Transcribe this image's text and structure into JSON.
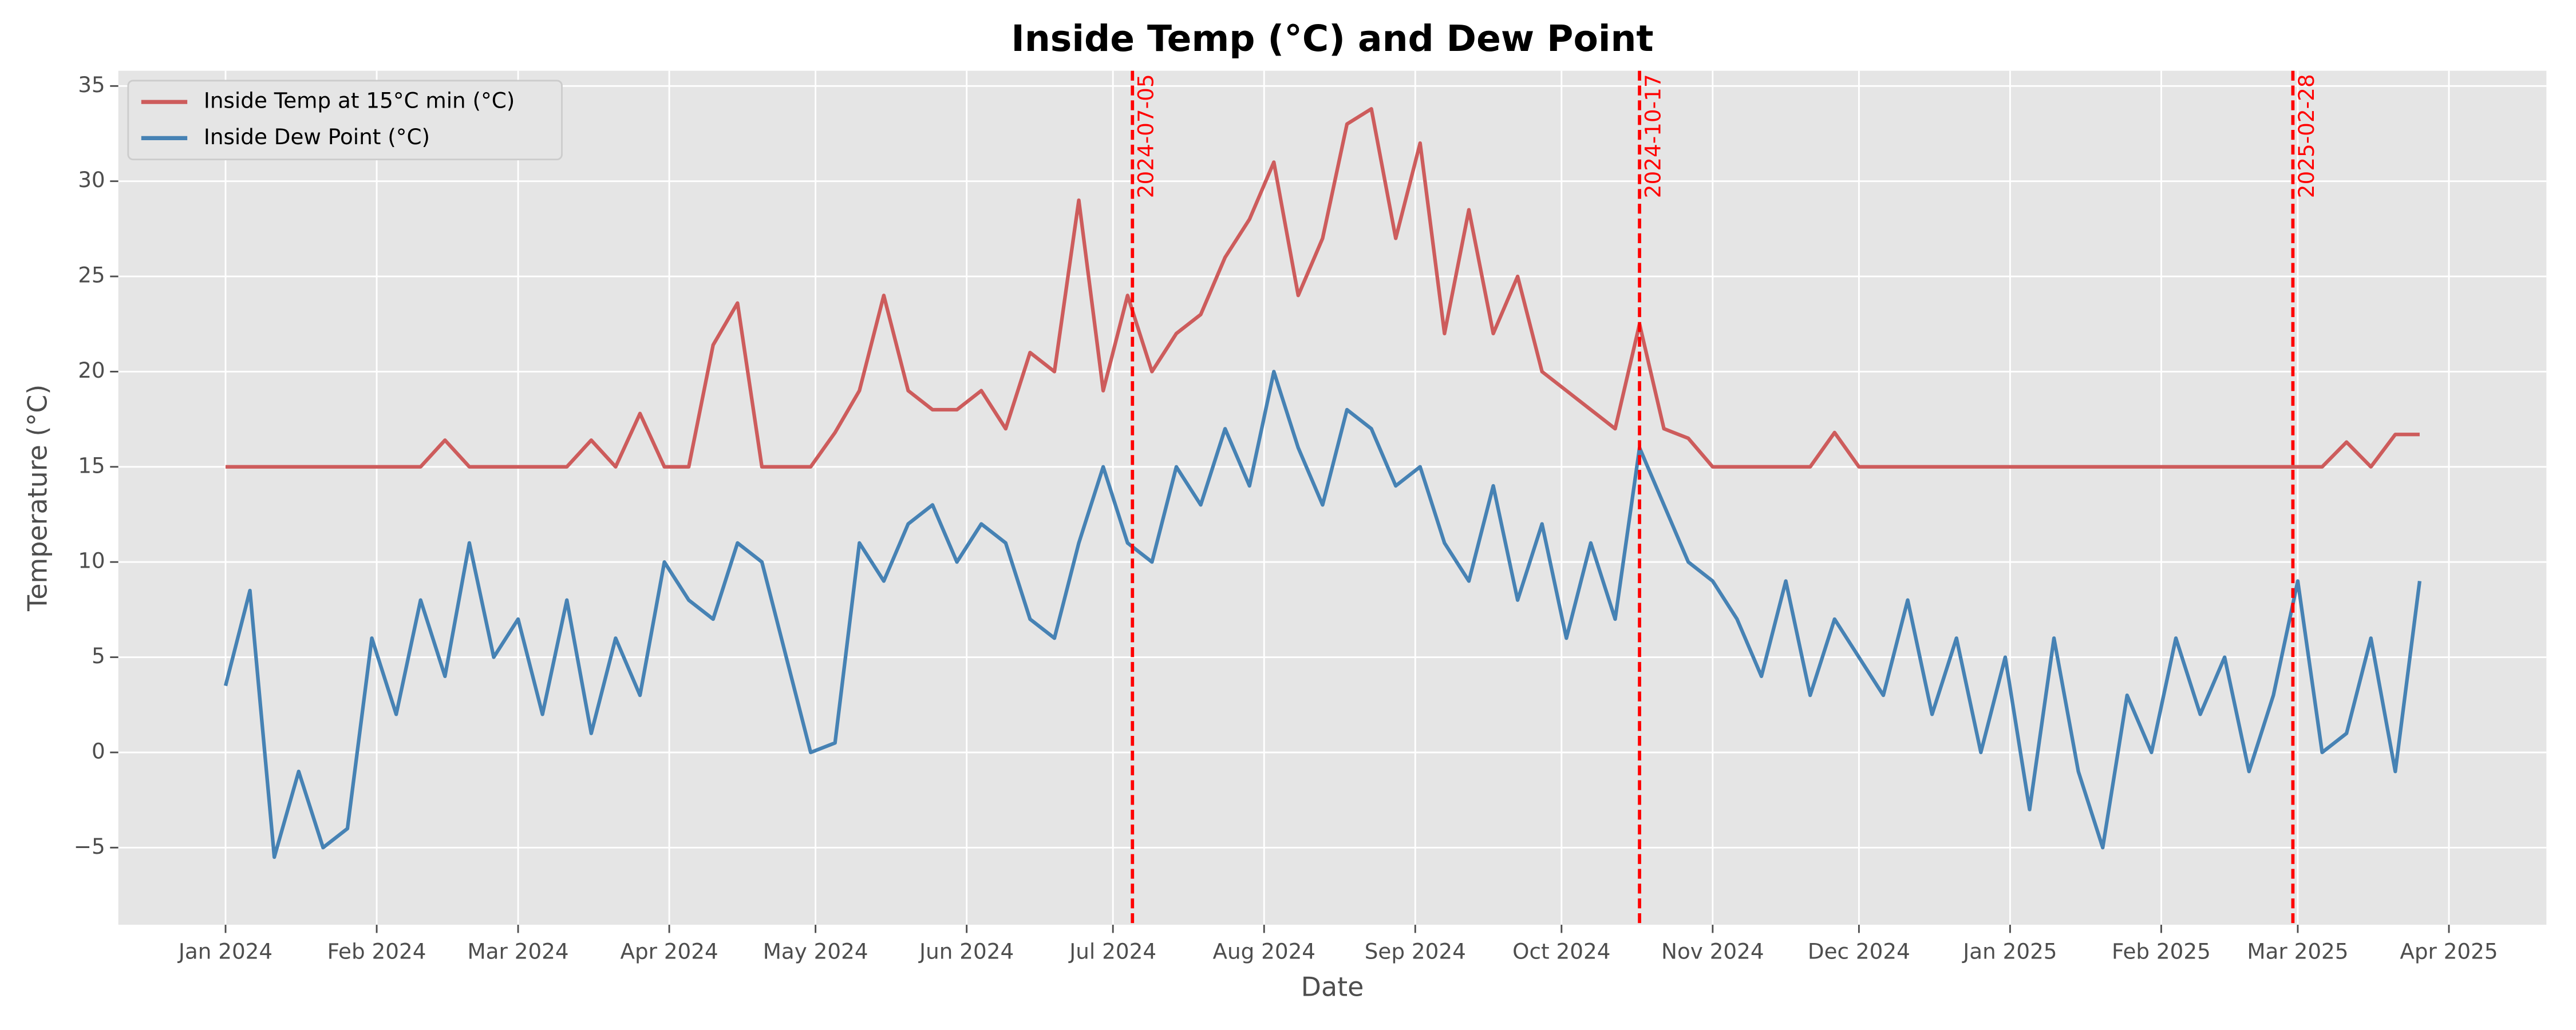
{
  "chart_data": {
    "type": "line",
    "title": "Inside Temp (°C) and Dew Point",
    "x_label": "Date",
    "y_label": "Temperature (°C)",
    "x": [
      "2024-01-01",
      "2024-01-06",
      "2024-01-11",
      "2024-01-16",
      "2024-01-21",
      "2024-01-26",
      "2024-01-31",
      "2024-02-05",
      "2024-02-10",
      "2024-02-15",
      "2024-02-20",
      "2024-02-25",
      "2024-03-01",
      "2024-03-06",
      "2024-03-11",
      "2024-03-16",
      "2024-03-21",
      "2024-03-26",
      "2024-03-31",
      "2024-04-05",
      "2024-04-10",
      "2024-04-15",
      "2024-04-20",
      "2024-04-25",
      "2024-04-30",
      "2024-05-05",
      "2024-05-10",
      "2024-05-15",
      "2024-05-20",
      "2024-05-25",
      "2024-05-30",
      "2024-06-04",
      "2024-06-09",
      "2024-06-14",
      "2024-06-19",
      "2024-06-24",
      "2024-06-29",
      "2024-07-04",
      "2024-07-09",
      "2024-07-14",
      "2024-07-19",
      "2024-07-24",
      "2024-07-29",
      "2024-08-03",
      "2024-08-08",
      "2024-08-13",
      "2024-08-18",
      "2024-08-23",
      "2024-08-28",
      "2024-09-02",
      "2024-09-07",
      "2024-09-12",
      "2024-09-17",
      "2024-09-22",
      "2024-09-27",
      "2024-10-02",
      "2024-10-07",
      "2024-10-12",
      "2024-10-17",
      "2024-10-22",
      "2024-10-27",
      "2024-11-01",
      "2024-11-06",
      "2024-11-11",
      "2024-11-16",
      "2024-11-21",
      "2024-11-26",
      "2024-12-01",
      "2024-12-06",
      "2024-12-11",
      "2024-12-16",
      "2024-12-21",
      "2024-12-26",
      "2024-12-31",
      "2025-01-05",
      "2025-01-10",
      "2025-01-15",
      "2025-01-20",
      "2025-01-25",
      "2025-01-30",
      "2025-02-04",
      "2025-02-09",
      "2025-02-14",
      "2025-02-19",
      "2025-02-24",
      "2025-03-01",
      "2025-03-06",
      "2025-03-11",
      "2025-03-16",
      "2025-03-21",
      "2025-03-26"
    ],
    "series": [
      {
        "name": "Inside Temp at 15°C min (°C)",
        "color": "#cd5c5c",
        "values": [
          15,
          15,
          15,
          15,
          15,
          15,
          15,
          15,
          15,
          16.4,
          15,
          15,
          15,
          15,
          15,
          16.4,
          15,
          17.8,
          15,
          15,
          21.4,
          23.6,
          15,
          15,
          15,
          16.8,
          19,
          24,
          19,
          18,
          18,
          19,
          17,
          21,
          20,
          29,
          19,
          24,
          20,
          22,
          23,
          26,
          28,
          31,
          24,
          27,
          33,
          33.8,
          27,
          32,
          22,
          28.5,
          22,
          25,
          20,
          19,
          18,
          17,
          22.5,
          17,
          16.5,
          15,
          15,
          15,
          15,
          15,
          16.8,
          15,
          15,
          15,
          15,
          15,
          15,
          15,
          15,
          15,
          15,
          15,
          15,
          15,
          15,
          15,
          15,
          15,
          15,
          15,
          15,
          16.3,
          15,
          16.7,
          16.7
        ]
      },
      {
        "name": "Inside Dew Point (°C)",
        "color": "#4682b4",
        "values": [
          3.5,
          8.5,
          -5.5,
          -1,
          -5,
          -4,
          6,
          2,
          8,
          4,
          11,
          5,
          7,
          2,
          8,
          1,
          6,
          3,
          10,
          8,
          7,
          11,
          10,
          5,
          0,
          0.5,
          11,
          9,
          12,
          13,
          10,
          12,
          11,
          7,
          6,
          11,
          15,
          11,
          10,
          15,
          13,
          17,
          14,
          20,
          16,
          13,
          18,
          17,
          14,
          15,
          11,
          9,
          14,
          8,
          12,
          6,
          11,
          7,
          16,
          13,
          10,
          9,
          7,
          4,
          9,
          3,
          7,
          5,
          3,
          8,
          2,
          6,
          0,
          5,
          -3,
          6,
          -1,
          -5,
          3,
          0,
          6,
          2,
          5,
          -1,
          3,
          9,
          0,
          1,
          6,
          -1,
          9
        ]
      }
    ],
    "annotations": [
      {
        "x": "2024-07-05",
        "label": "2024-07-05",
        "color": "#ff0000"
      },
      {
        "x": "2024-10-17",
        "label": "2024-10-17",
        "color": "#ff0000"
      },
      {
        "x": "2025-02-28",
        "label": "2025-02-28",
        "color": "#ff0000"
      }
    ],
    "xlim": [
      "2023-12-10",
      "2025-04-21"
    ],
    "xticks": [
      {
        "value": "2024-01-01",
        "label": "Jan 2024"
      },
      {
        "value": "2024-02-01",
        "label": "Feb 2024"
      },
      {
        "value": "2024-03-01",
        "label": "Mar 2024"
      },
      {
        "value": "2024-04-01",
        "label": "Apr 2024"
      },
      {
        "value": "2024-05-01",
        "label": "May 2024"
      },
      {
        "value": "2024-06-01",
        "label": "Jun 2024"
      },
      {
        "value": "2024-07-01",
        "label": "Jul 2024"
      },
      {
        "value": "2024-08-01",
        "label": "Aug 2024"
      },
      {
        "value": "2024-09-01",
        "label": "Sep 2024"
      },
      {
        "value": "2024-10-01",
        "label": "Oct 2024"
      },
      {
        "value": "2024-11-01",
        "label": "Nov 2024"
      },
      {
        "value": "2024-12-01",
        "label": "Dec 2024"
      },
      {
        "value": "2025-01-01",
        "label": "Jan 2025"
      },
      {
        "value": "2025-02-01",
        "label": "Feb 2025"
      },
      {
        "value": "2025-03-01",
        "label": "Mar 2025"
      },
      {
        "value": "2025-04-01",
        "label": "Apr 2025"
      }
    ],
    "ylim": [
      -9.05,
      35.8
    ],
    "yticks": [
      {
        "value": -5,
        "label": "−5"
      },
      0,
      5,
      10,
      15,
      20,
      25,
      30,
      35
    ],
    "grid": true,
    "legend": "upper left"
  }
}
